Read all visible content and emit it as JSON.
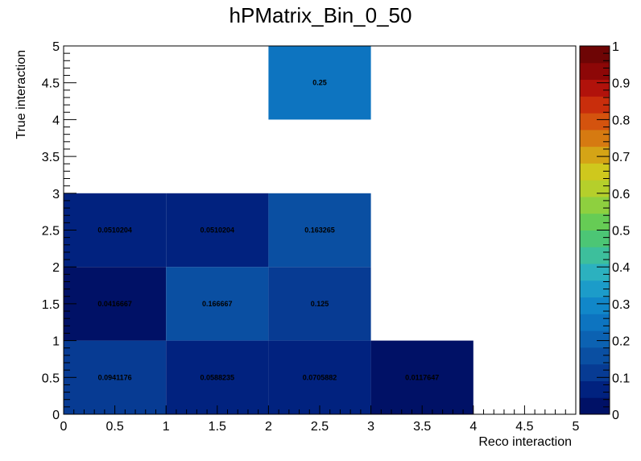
{
  "chart_data": {
    "type": "heatmap",
    "title": "hPMatrix_Bin_0_50",
    "xlabel": "Reco interaction",
    "ylabel": "True interaction",
    "xlim": [
      0,
      5
    ],
    "ylim": [
      0,
      5
    ],
    "x_ticks": [
      "0",
      "0.5",
      "1",
      "1.5",
      "2",
      "2.5",
      "3",
      "3.5",
      "4",
      "4.5",
      "5"
    ],
    "y_ticks": [
      "0",
      "0.5",
      "1",
      "1.5",
      "2",
      "2.5",
      "3",
      "3.5",
      "4",
      "4.5",
      "5"
    ],
    "colorbar_ticks": [
      "0",
      "0.1",
      "0.2",
      "0.3",
      "0.4",
      "0.5",
      "0.6",
      "0.7",
      "0.8",
      "0.9",
      "1"
    ],
    "zlim": [
      0,
      1
    ],
    "cells": [
      {
        "x": 0,
        "y": 0,
        "value": 0.0941176,
        "label": "0.0941176"
      },
      {
        "x": 1,
        "y": 0,
        "value": 0.0588235,
        "label": "0.0588235"
      },
      {
        "x": 2,
        "y": 0,
        "value": 0.0705882,
        "label": "0.0705882"
      },
      {
        "x": 3,
        "y": 0,
        "value": 0.0117647,
        "label": "0.0117647"
      },
      {
        "x": 0,
        "y": 1,
        "value": 0.0416667,
        "label": "0.0416667"
      },
      {
        "x": 1,
        "y": 1,
        "value": 0.166667,
        "label": "0.166667"
      },
      {
        "x": 2,
        "y": 1,
        "value": 0.125,
        "label": "0.125"
      },
      {
        "x": 0,
        "y": 2,
        "value": 0.0510204,
        "label": "0.0510204"
      },
      {
        "x": 1,
        "y": 2,
        "value": 0.0510204,
        "label": "0.0510204"
      },
      {
        "x": 2,
        "y": 2,
        "value": 0.163265,
        "label": "0.163265"
      },
      {
        "x": 2,
        "y": 4,
        "value": 0.25,
        "label": "0.25"
      }
    ],
    "palette": [
      "#001166",
      "#01227f",
      "#073b93",
      "#0a4fa2",
      "#0c62b2",
      "#0d74c0",
      "#1187c9",
      "#1c9cc9",
      "#2cb1bf",
      "#3dbf9c",
      "#4cc675",
      "#66cc55",
      "#8ed03f",
      "#b5cf2b",
      "#cfc81d",
      "#d5a416",
      "#d67a11",
      "#d4530e",
      "#c92e0c",
      "#b1120b",
      "#8d0707",
      "#6e0505"
    ]
  }
}
